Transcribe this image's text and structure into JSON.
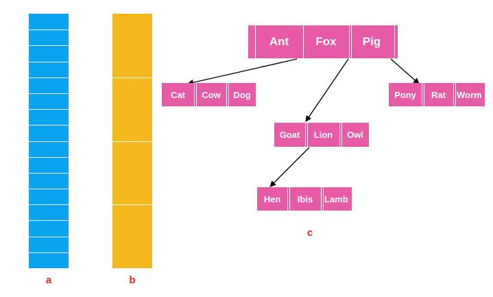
{
  "colors": {
    "column_a": "#0aa3f0",
    "column_b": "#f4b81f",
    "node_fill": "#e75aa6",
    "label_text": "#e8241c",
    "key_text": "#ffffff",
    "edge": "#000000"
  },
  "panel_a": {
    "label": "a",
    "segments": 16
  },
  "panel_b": {
    "label": "b",
    "segments": 4
  },
  "panel_c": {
    "label": "c",
    "root": {
      "keys": [
        "Ant",
        "Fox",
        "Pig"
      ]
    },
    "level1": [
      {
        "keys": [
          "Cat",
          "Cow",
          "Dog"
        ]
      },
      {
        "keys": [
          "Pony",
          "Rat",
          "Worm"
        ]
      }
    ],
    "level2": {
      "keys": [
        "Goat",
        "Lion",
        "Owl"
      ]
    },
    "level3": {
      "keys": [
        "Hen",
        "Ibis",
        "Lamb"
      ]
    }
  }
}
